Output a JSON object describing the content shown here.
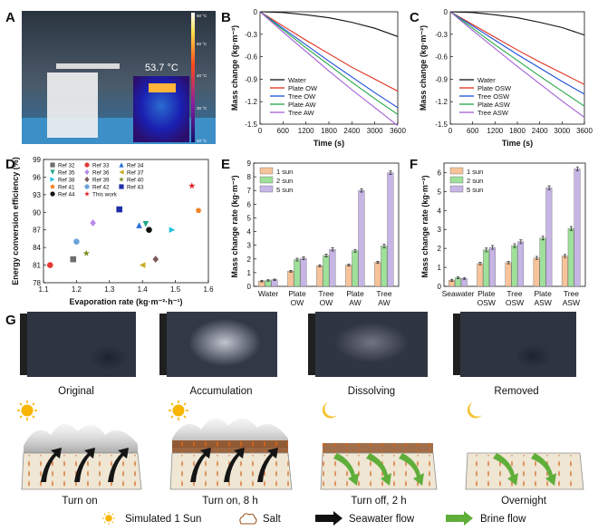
{
  "panel_labels": {
    "a": "A",
    "b": "B",
    "c": "C",
    "d": "D",
    "e": "E",
    "f": "F",
    "g": "G"
  },
  "panel_a": {
    "temperature": "53.7 °C",
    "scale_ticks": [
      "60 °C",
      "50 °C",
      "40 °C",
      "30 °C",
      "20 °C"
    ]
  },
  "colors": {
    "water": "#111111",
    "plate": "#e0301e",
    "tree": "#1f4fd8",
    "plate_aw": "#25a845",
    "tree_aw": "#a35fd6",
    "one_sun": "#f7c39a",
    "two_sun": "#9fe09a",
    "five_sun": "#c7b5e6"
  },
  "chart_data": [
    {
      "id": "B",
      "type": "line",
      "xlabel": "Time (s)",
      "ylabel": "Mass change (kg·m⁻²)",
      "xlim": [
        0,
        3600
      ],
      "ylim": [
        -1.5,
        0
      ],
      "xticks": [
        "0",
        "600",
        "1200",
        "1800",
        "2400",
        "3000",
        "3600"
      ],
      "yticks": [
        "0",
        "-0.3",
        "-0.6",
        "-0.9",
        "-1.2",
        "-1.5"
      ],
      "legend": [
        "Water",
        "Plate OW",
        "Tree OW",
        "Plate AW",
        "Tree AW"
      ],
      "series": [
        {
          "name": "Water",
          "x": [
            0,
            600,
            1200,
            1800,
            2400,
            3000,
            3600
          ],
          "y": [
            0,
            -0.01,
            -0.04,
            -0.08,
            -0.14,
            -0.22,
            -0.33
          ]
        },
        {
          "name": "Plate OW",
          "x": [
            0,
            600,
            1200,
            1800,
            2400,
            3000,
            3600
          ],
          "y": [
            0,
            -0.19,
            -0.38,
            -0.56,
            -0.74,
            -0.9,
            -1.06
          ]
        },
        {
          "name": "Tree OW",
          "x": [
            0,
            600,
            1200,
            1800,
            2400,
            3000,
            3600
          ],
          "y": [
            0,
            -0.22,
            -0.44,
            -0.66,
            -0.87,
            -1.08,
            -1.28
          ]
        },
        {
          "name": "Plate AW",
          "x": [
            0,
            600,
            1200,
            1800,
            2400,
            3000,
            3600
          ],
          "y": [
            0,
            -0.24,
            -0.48,
            -0.71,
            -0.94,
            -1.16,
            -1.37
          ]
        },
        {
          "name": "Tree AW",
          "x": [
            0,
            600,
            1200,
            1800,
            2400,
            3000,
            3600
          ],
          "y": [
            0,
            -0.27,
            -0.53,
            -0.79,
            -1.04,
            -1.28,
            -1.52
          ]
        }
      ]
    },
    {
      "id": "C",
      "type": "line",
      "xlabel": "Time (s)",
      "ylabel": "Mass change (kg·m⁻²)",
      "xlim": [
        0,
        3600
      ],
      "ylim": [
        -1.5,
        0
      ],
      "xticks": [
        "0",
        "600",
        "1200",
        "1800",
        "2400",
        "3000",
        "3600"
      ],
      "yticks": [
        "0",
        "-0.3",
        "-0.6",
        "-0.9",
        "-1.2",
        "-1.5"
      ],
      "legend": [
        "Water",
        "Plate OSW",
        "Tree OSW",
        "Plate ASW",
        "Tree ASW"
      ],
      "series": [
        {
          "name": "Water",
          "x": [
            0,
            600,
            1200,
            1800,
            2400,
            3000,
            3600
          ],
          "y": [
            0,
            -0.01,
            -0.04,
            -0.08,
            -0.14,
            -0.21,
            -0.31
          ]
        },
        {
          "name": "Plate OSW",
          "x": [
            0,
            600,
            1200,
            1800,
            2400,
            3000,
            3600
          ],
          "y": [
            0,
            -0.17,
            -0.34,
            -0.51,
            -0.67,
            -0.82,
            -0.97
          ]
        },
        {
          "name": "Tree OSW",
          "x": [
            0,
            600,
            1200,
            1800,
            2400,
            3000,
            3600
          ],
          "y": [
            0,
            -0.19,
            -0.38,
            -0.57,
            -0.75,
            -0.93,
            -1.1
          ]
        },
        {
          "name": "Plate ASW",
          "x": [
            0,
            600,
            1200,
            1800,
            2400,
            3000,
            3600
          ],
          "y": [
            0,
            -0.22,
            -0.44,
            -0.65,
            -0.86,
            -1.06,
            -1.26
          ]
        },
        {
          "name": "Tree ASW",
          "x": [
            0,
            600,
            1200,
            1800,
            2400,
            3000,
            3600
          ],
          "y": [
            0,
            -0.25,
            -0.49,
            -0.73,
            -0.96,
            -1.19,
            -1.41
          ]
        }
      ]
    },
    {
      "id": "D",
      "type": "scatter",
      "xlabel": "Evaporation rate (kg·m⁻²·h⁻¹)",
      "ylabel": "Energy conversion efficiency (%)",
      "xlim": [
        1.1,
        1.6
      ],
      "ylim": [
        78,
        99
      ],
      "xticks": [
        "1.1",
        "1.2",
        "1.3",
        "1.4",
        "1.5",
        "1.6"
      ],
      "yticks": [
        "78",
        "81",
        "84",
        "87",
        "90",
        "93",
        "96",
        "99"
      ],
      "points": [
        {
          "name": "Ref 32",
          "x": 1.19,
          "y": 82.0,
          "color": "#6d6d6d",
          "shape": "square"
        },
        {
          "name": "Ref 33",
          "x": 1.12,
          "y": 81.0,
          "color": "#e53935",
          "shape": "circle"
        },
        {
          "name": "Ref 34",
          "x": 1.39,
          "y": 87.8,
          "color": "#2a6fd6",
          "shape": "triangle"
        },
        {
          "name": "Ref 35",
          "x": 1.41,
          "y": 88.0,
          "color": "#21a58a",
          "shape": "tridown"
        },
        {
          "name": "Ref 36",
          "x": 1.25,
          "y": 88.2,
          "color": "#b98ce8",
          "shape": "diamond"
        },
        {
          "name": "Ref 37",
          "x": 1.4,
          "y": 81.0,
          "color": "#c9ad22",
          "shape": "tri-left"
        },
        {
          "name": "Ref 38",
          "x": 1.49,
          "y": 87.0,
          "color": "#22c1e0",
          "shape": "tri-right"
        },
        {
          "name": "Ref 39",
          "x": 1.44,
          "y": 82.0,
          "color": "#7d5a5a",
          "shape": "diamond"
        },
        {
          "name": "Ref 40",
          "x": 1.23,
          "y": 83.0,
          "color": "#7a8a1e",
          "shape": "star"
        },
        {
          "name": "Ref 41",
          "x": 1.57,
          "y": 90.3,
          "color": "#f2862d",
          "shape": "pentagon"
        },
        {
          "name": "Ref 42",
          "x": 1.2,
          "y": 85.0,
          "color": "#6aa2d8",
          "shape": "circle"
        },
        {
          "name": "Ref 43",
          "x": 1.33,
          "y": 90.5,
          "color": "#1f2fa8",
          "shape": "square"
        },
        {
          "name": "Ref 44",
          "x": 1.42,
          "y": 87.0,
          "color": "#111111",
          "shape": "circle"
        },
        {
          "name": "This work",
          "x": 1.55,
          "y": 94.5,
          "color": "#e31e24",
          "shape": "star"
        }
      ]
    },
    {
      "id": "E",
      "type": "bar",
      "ylabel": "Mass change rate (kg·m⁻²)",
      "ylim": [
        0,
        9
      ],
      "yticks": [
        "0",
        "1",
        "2",
        "3",
        "4",
        "5",
        "6",
        "7",
        "8",
        "9"
      ],
      "categories": [
        "Water",
        "Plate OW",
        "Tree OW",
        "Plate AW",
        "Tree AW"
      ],
      "category_lines": [
        [
          "Water"
        ],
        [
          "Plate",
          "OW"
        ],
        [
          "Tree",
          "OW"
        ],
        [
          "Plate",
          "AW"
        ],
        [
          "Tree",
          "AW"
        ]
      ],
      "legend": [
        "1 sun",
        "2 sun",
        "5 sun"
      ],
      "series": [
        {
          "name": "1 sun",
          "values": [
            0.38,
            1.1,
            1.5,
            1.55,
            1.75
          ],
          "errors": [
            0.05,
            0.06,
            0.07,
            0.07,
            0.08
          ]
        },
        {
          "name": "2 sun",
          "values": [
            0.43,
            1.95,
            2.25,
            2.6,
            2.95
          ],
          "errors": [
            0.05,
            0.1,
            0.1,
            0.1,
            0.12
          ]
        },
        {
          "name": "5 sun",
          "values": [
            0.48,
            2.05,
            2.7,
            7.0,
            8.3
          ],
          "errors": [
            0.05,
            0.1,
            0.12,
            0.12,
            0.12
          ]
        }
      ]
    },
    {
      "id": "F",
      "type": "bar",
      "ylabel": "Mass change rate (kg·m⁻²)",
      "ylim": [
        0,
        6.5
      ],
      "yticks": [
        "0",
        "1",
        "2",
        "3",
        "4",
        "5",
        "6"
      ],
      "categories": [
        "Seawater",
        "Plate OSW",
        "Tree OSW",
        "Plate ASW",
        "Tree ASW"
      ],
      "category_lines": [
        [
          "Seawater"
        ],
        [
          "Plate",
          "OSW"
        ],
        [
          "Tree",
          "OSW"
        ],
        [
          "Plate",
          "ASW"
        ],
        [
          "Tree",
          "ASW"
        ]
      ],
      "legend": [
        "1 sun",
        "2 sun",
        "5 sun"
      ],
      "series": [
        {
          "name": "1 sun",
          "values": [
            0.32,
            1.2,
            1.25,
            1.5,
            1.6
          ],
          "errors": [
            0.05,
            0.06,
            0.06,
            0.08,
            0.08
          ]
        },
        {
          "name": "2 sun",
          "values": [
            0.45,
            1.92,
            2.15,
            2.55,
            3.05
          ],
          "errors": [
            0.05,
            0.1,
            0.1,
            0.1,
            0.1
          ]
        },
        {
          "name": "5 sun",
          "values": [
            0.42,
            2.05,
            2.35,
            5.2,
            6.2
          ],
          "errors": [
            0.05,
            0.1,
            0.1,
            0.1,
            0.1
          ]
        }
      ]
    }
  ],
  "panel_g": {
    "photo_captions": [
      "Original",
      "Accumulation",
      "Dissolving",
      "Removed"
    ],
    "scheme_captions": [
      "Turn on",
      "Turn on, 8 h",
      "Turn off, 2 h",
      "Overnight"
    ],
    "legend": {
      "sun": "Simulated 1 Sun",
      "salt": "Salt",
      "seawater": "Seawater flow",
      "brine": "Brine flow"
    }
  }
}
